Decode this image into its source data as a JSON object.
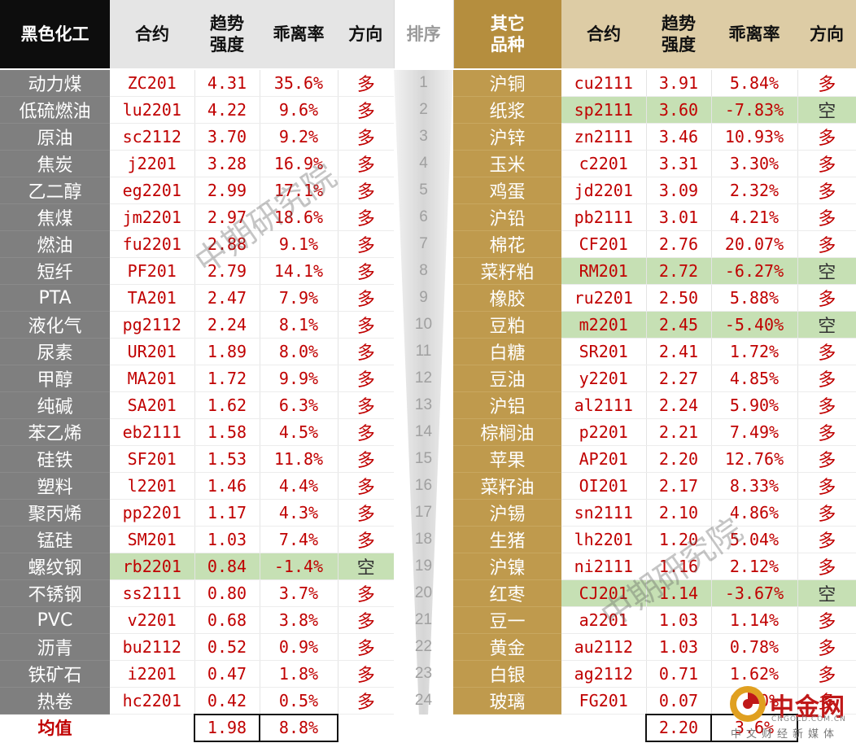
{
  "headers": {
    "left_category": "黑色化工",
    "contract": "合约",
    "trend_strength": "趋势强度",
    "deviation": "乖离率",
    "direction": "方向",
    "rank": "排序",
    "right_category": "其它品种"
  },
  "left_rows": [
    {
      "name": "动力煤",
      "code": "ZC201",
      "strength": "4.31",
      "deviation": "35.6%",
      "direction": "多"
    },
    {
      "name": "低硫燃油",
      "code": "lu2201",
      "strength": "4.22",
      "deviation": "9.6%",
      "direction": "多"
    },
    {
      "name": "原油",
      "code": "sc2112",
      "strength": "3.70",
      "deviation": "9.2%",
      "direction": "多"
    },
    {
      "name": "焦炭",
      "code": "j2201",
      "strength": "3.28",
      "deviation": "16.9%",
      "direction": "多"
    },
    {
      "name": "乙二醇",
      "code": "eg2201",
      "strength": "2.99",
      "deviation": "17.1%",
      "direction": "多"
    },
    {
      "name": "焦煤",
      "code": "jm2201",
      "strength": "2.97",
      "deviation": "18.6%",
      "direction": "多"
    },
    {
      "name": "燃油",
      "code": "fu2201",
      "strength": "2.88",
      "deviation": "9.1%",
      "direction": "多"
    },
    {
      "name": "短纤",
      "code": "PF201",
      "strength": "2.79",
      "deviation": "14.1%",
      "direction": "多"
    },
    {
      "name": "PTA",
      "code": "TA201",
      "strength": "2.47",
      "deviation": "7.9%",
      "direction": "多"
    },
    {
      "name": "液化气",
      "code": "pg2112",
      "strength": "2.24",
      "deviation": "8.1%",
      "direction": "多"
    },
    {
      "name": "尿素",
      "code": "UR201",
      "strength": "1.89",
      "deviation": "8.0%",
      "direction": "多"
    },
    {
      "name": "甲醇",
      "code": "MA201",
      "strength": "1.72",
      "deviation": "9.9%",
      "direction": "多"
    },
    {
      "name": "纯碱",
      "code": "SA201",
      "strength": "1.62",
      "deviation": "6.3%",
      "direction": "多"
    },
    {
      "name": "苯乙烯",
      "code": "eb2111",
      "strength": "1.58",
      "deviation": "4.5%",
      "direction": "多"
    },
    {
      "name": "硅铁",
      "code": "SF201",
      "strength": "1.53",
      "deviation": "11.8%",
      "direction": "多"
    },
    {
      "name": "塑料",
      "code": "l2201",
      "strength": "1.46",
      "deviation": "4.4%",
      "direction": "多"
    },
    {
      "name": "聚丙烯",
      "code": "pp2201",
      "strength": "1.17",
      "deviation": "4.3%",
      "direction": "多"
    },
    {
      "name": "锰硅",
      "code": "SM201",
      "strength": "1.03",
      "deviation": "7.4%",
      "direction": "多"
    },
    {
      "name": "螺纹钢",
      "code": "rb2201",
      "strength": "0.84",
      "deviation": "-1.4%",
      "direction": "空",
      "short": true
    },
    {
      "name": "不锈钢",
      "code": "ss2111",
      "strength": "0.80",
      "deviation": "3.7%",
      "direction": "多"
    },
    {
      "name": "PVC",
      "code": "v2201",
      "strength": "0.68",
      "deviation": "3.8%",
      "direction": "多"
    },
    {
      "name": "沥青",
      "code": "bu2112",
      "strength": "0.52",
      "deviation": "0.9%",
      "direction": "多"
    },
    {
      "name": "铁矿石",
      "code": "i2201",
      "strength": "0.47",
      "deviation": "1.8%",
      "direction": "多"
    },
    {
      "name": "热卷",
      "code": "hc2201",
      "strength": "0.42",
      "deviation": "0.5%",
      "direction": "多"
    }
  ],
  "right_rows": [
    {
      "name": "沪铜",
      "code": "cu2111",
      "strength": "3.91",
      "deviation": "5.84%",
      "direction": "多"
    },
    {
      "name": "纸浆",
      "code": "sp2111",
      "strength": "3.60",
      "deviation": "-7.83%",
      "direction": "空",
      "short": true
    },
    {
      "name": "沪锌",
      "code": "zn2111",
      "strength": "3.46",
      "deviation": "10.93%",
      "direction": "多"
    },
    {
      "name": "玉米",
      "code": "c2201",
      "strength": "3.31",
      "deviation": "3.30%",
      "direction": "多"
    },
    {
      "name": "鸡蛋",
      "code": "jd2201",
      "strength": "3.09",
      "deviation": "2.32%",
      "direction": "多"
    },
    {
      "name": "沪铅",
      "code": "pb2111",
      "strength": "3.01",
      "deviation": "4.21%",
      "direction": "多"
    },
    {
      "name": "棉花",
      "code": "CF201",
      "strength": "2.76",
      "deviation": "20.07%",
      "direction": "多"
    },
    {
      "name": "菜籽粕",
      "code": "RM201",
      "strength": "2.72",
      "deviation": "-6.27%",
      "direction": "空",
      "short": true
    },
    {
      "name": "橡胶",
      "code": "ru2201",
      "strength": "2.50",
      "deviation": "5.88%",
      "direction": "多"
    },
    {
      "name": "豆粕",
      "code": "m2201",
      "strength": "2.45",
      "deviation": "-5.40%",
      "direction": "空",
      "short": true
    },
    {
      "name": "白糖",
      "code": "SR201",
      "strength": "2.41",
      "deviation": "1.72%",
      "direction": "多"
    },
    {
      "name": "豆油",
      "code": "y2201",
      "strength": "2.27",
      "deviation": "4.85%",
      "direction": "多"
    },
    {
      "name": "沪铝",
      "code": "al2111",
      "strength": "2.24",
      "deviation": "5.90%",
      "direction": "多"
    },
    {
      "name": "棕榈油",
      "code": "p2201",
      "strength": "2.21",
      "deviation": "7.49%",
      "direction": "多"
    },
    {
      "name": "苹果",
      "code": "AP201",
      "strength": "2.20",
      "deviation": "12.76%",
      "direction": "多"
    },
    {
      "name": "菜籽油",
      "code": "OI201",
      "strength": "2.17",
      "deviation": "8.33%",
      "direction": "多"
    },
    {
      "name": "沪锡",
      "code": "sn2111",
      "strength": "2.10",
      "deviation": "4.86%",
      "direction": "多"
    },
    {
      "name": "生猪",
      "code": "lh2201",
      "strength": "1.20",
      "deviation": "5.04%",
      "direction": "多"
    },
    {
      "name": "沪镍",
      "code": "ni2111",
      "strength": "1.16",
      "deviation": "2.12%",
      "direction": "多"
    },
    {
      "name": "红枣",
      "code": "CJ201",
      "strength": "1.14",
      "deviation": "-3.67%",
      "direction": "空",
      "short": true
    },
    {
      "name": "豆一",
      "code": "a2201",
      "strength": "1.03",
      "deviation": "1.14%",
      "direction": "多"
    },
    {
      "name": "黄金",
      "code": "au2112",
      "strength": "1.03",
      "deviation": "0.78%",
      "direction": "多"
    },
    {
      "name": "白银",
      "code": "ag2112",
      "strength": "0.71",
      "deviation": "1.62%",
      "direction": "多"
    },
    {
      "name": "玻璃",
      "code": "FG201",
      "strength": "0.07",
      "deviation": "0.00%",
      "direction": "多"
    }
  ],
  "footer": {
    "label": "均值",
    "left_strength": "1.98",
    "left_deviation": "8.8%",
    "right_strength": "2.20",
    "right_deviation": "3.6%"
  },
  "watermark": "中期研究院",
  "logo": {
    "name": "中金网",
    "domain": "CNGOLD.COM.CN",
    "tagline": "中文财经新媒体"
  },
  "colors": {
    "text_red": "#c00000",
    "short_green": "#c6e0b4",
    "left_name_bg": "#7f7f7f",
    "right_name_bg": "#bf9a4d"
  }
}
